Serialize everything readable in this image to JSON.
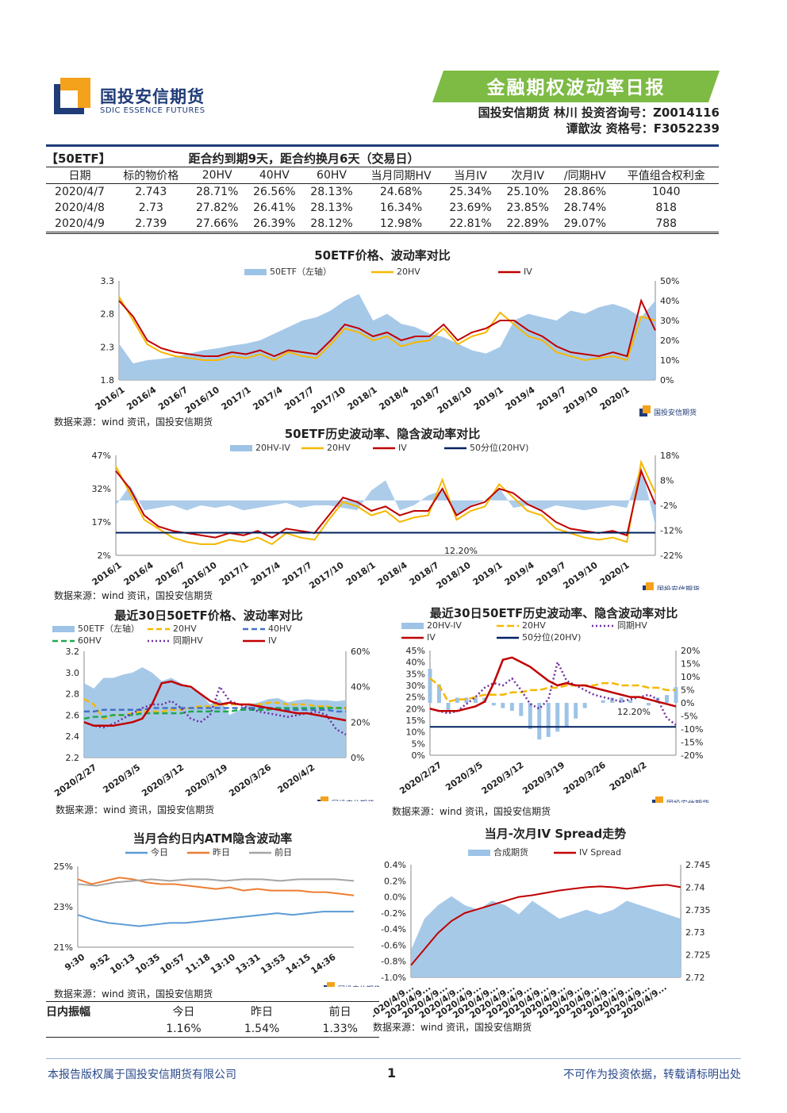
{
  "header": {
    "logo_text": "国投安信期货",
    "logo_sub": "SDIC ESSENCE FUTURES",
    "report_title": "金融期权波动率日报",
    "author_line1": "国投安信期货  林川  投资咨询号：Z0014116",
    "author_line2": "谭歆汝      资格号：F3052239",
    "colors": {
      "brand_blue": "#1f3b78",
      "brand_orange": "#f4a21b",
      "banner_green": "#7dbb44"
    }
  },
  "summary_table": {
    "tag": "【50ETF】",
    "note": "距合约到期9天，距合约换月6天（交易日）",
    "columns": [
      "日期",
      "标的物价格",
      "20HV",
      "40HV",
      "60HV",
      "当月同期HV",
      "当月IV",
      "次月IV",
      "/同期HV",
      "平值组合权利金"
    ],
    "rows": [
      [
        "2020/4/7",
        "2.743",
        "28.71%",
        "26.56%",
        "28.13%",
        "24.68%",
        "25.34%",
        "25.10%",
        "28.86%",
        "1040"
      ],
      [
        "2020/4/8",
        "2.73",
        "27.82%",
        "26.41%",
        "28.13%",
        "16.34%",
        "23.69%",
        "23.85%",
        "28.74%",
        "818"
      ],
      [
        "2020/4/9",
        "2.739",
        "27.66%",
        "26.39%",
        "28.12%",
        "12.98%",
        "22.81%",
        "22.89%",
        "29.07%",
        "788"
      ]
    ]
  },
  "source_note": "数据来源：wind 资讯，国投安信期货",
  "watermark": "国投安信期货",
  "chart_data": [
    {
      "id": "c1",
      "type": "area",
      "title": "50ETF价格、波动率对比",
      "legend": [
        "50ETF（左轴）",
        "20HV",
        "IV"
      ],
      "x_ticks": [
        "2016/1",
        "2016/4",
        "2016/7",
        "2016/10",
        "2017/1",
        "2017/4",
        "2017/7",
        "2017/10",
        "2018/1",
        "2018/4",
        "2018/7",
        "2018/10",
        "2019/1",
        "2019/4",
        "2019/7",
        "2019/10",
        "2020/1"
      ],
      "y_left_ticks": [
        "1.8",
        "2.3",
        "2.8",
        "3.3"
      ],
      "y_right_ticks": [
        "0%",
        "10%",
        "20%",
        "30%",
        "40%",
        "50%"
      ],
      "ylim_left": [
        1.8,
        3.3
      ],
      "ylim_right": [
        0,
        50
      ],
      "series": [
        {
          "name": "50ETF（左轴）",
          "axis": "left",
          "values": [
            2.35,
            2.05,
            2.1,
            2.12,
            2.15,
            2.2,
            2.25,
            2.28,
            2.32,
            2.35,
            2.4,
            2.5,
            2.6,
            2.7,
            2.75,
            2.85,
            3.0,
            3.1,
            2.7,
            2.8,
            2.65,
            2.6,
            2.5,
            2.45,
            2.35,
            2.25,
            2.2,
            2.3,
            2.7,
            2.8,
            2.75,
            2.7,
            2.85,
            2.8,
            2.9,
            2.95,
            2.88,
            2.75,
            3.0
          ]
        },
        {
          "name": "20HV",
          "axis": "right",
          "values": [
            42,
            30,
            18,
            14,
            12,
            11,
            10,
            10,
            12,
            11,
            13,
            10,
            14,
            12,
            11,
            18,
            26,
            24,
            20,
            22,
            17,
            19,
            20,
            26,
            18,
            22,
            24,
            34,
            28,
            22,
            20,
            14,
            12,
            10,
            11,
            12,
            10,
            32,
            30
          ]
        },
        {
          "name": "IV",
          "axis": "right",
          "values": [
            40,
            32,
            20,
            16,
            14,
            13,
            12,
            12,
            14,
            13,
            15,
            12,
            15,
            14,
            13,
            20,
            28,
            26,
            22,
            24,
            20,
            22,
            22,
            28,
            20,
            24,
            26,
            30,
            30,
            25,
            22,
            17,
            14,
            13,
            12,
            14,
            12,
            40,
            25
          ]
        }
      ],
      "colors": {
        "50ETF（左轴）": "#9dc3e6",
        "20HV": "#f5b800",
        "IV": "#c00000"
      }
    },
    {
      "id": "c2",
      "type": "line",
      "title": "50ETF历史波动率、隐含波动率对比",
      "legend": [
        "20HV-IV",
        "20HV",
        "IV",
        "50分位(20HV)"
      ],
      "x_ticks": [
        "2016/1",
        "2016/4",
        "2016/7",
        "2016/10",
        "2017/1",
        "2017/4",
        "2017/7",
        "2017/10",
        "2018/1",
        "2018/4",
        "2018/7",
        "2018/10",
        "2019/1",
        "2019/4",
        "2019/7",
        "2019/10",
        "2020/1"
      ],
      "y_left_ticks": [
        "2%",
        "17%",
        "32%",
        "47%"
      ],
      "y_right_ticks": [
        "-22%",
        "-12%",
        "-2%",
        "8%",
        "18%"
      ],
      "ylim_left": [
        2,
        47
      ],
      "ylim_right": [
        -22,
        18
      ],
      "annotation": "12.20%",
      "series": [
        {
          "name": "20HV-IV",
          "axis": "right",
          "values": [
            -2,
            6,
            -4,
            -3,
            -2,
            -4,
            -2,
            -3,
            -2,
            -4,
            -3,
            -2,
            -1,
            -3,
            -2,
            -2,
            -3,
            -4,
            4,
            8,
            -4,
            -2,
            2,
            4,
            -6,
            -2,
            0,
            5,
            -3,
            -2,
            -4,
            -2,
            -3,
            -4,
            -3,
            -2,
            -3,
            14,
            -10
          ]
        },
        {
          "name": "20HV",
          "axis": "left",
          "values": [
            42,
            30,
            18,
            14,
            10,
            8,
            7,
            7,
            9,
            8,
            10,
            7,
            12,
            10,
            9,
            18,
            26,
            24,
            20,
            22,
            17,
            19,
            20,
            36,
            18,
            22,
            24,
            34,
            28,
            22,
            20,
            14,
            12,
            10,
            9,
            10,
            8,
            44,
            30
          ]
        },
        {
          "name": "IV",
          "axis": "left",
          "values": [
            40,
            32,
            20,
            15,
            13,
            12,
            11,
            10,
            12,
            11,
            13,
            10,
            14,
            13,
            12,
            20,
            28,
            26,
            22,
            24,
            20,
            22,
            22,
            32,
            20,
            24,
            26,
            32,
            30,
            25,
            22,
            17,
            14,
            13,
            12,
            13,
            11,
            40,
            25
          ]
        },
        {
          "name": "50分位(20HV)",
          "axis": "left",
          "values": [
            12.2,
            12.2
          ]
        }
      ],
      "colors": {
        "20HV-IV": "#9dc3e6",
        "20HV": "#f5b800",
        "IV": "#c00000",
        "50分位(20HV)": "#002060"
      }
    },
    {
      "id": "c3",
      "type": "line",
      "title": "最近30日50ETF价格、波动率对比",
      "legend": [
        "50ETF（左轴）",
        "20HV",
        "40HV",
        "60HV",
        "同期HV",
        "IV"
      ],
      "x_ticks": [
        "2020/2/27",
        "2020/3/5",
        "2020/3/12",
        "2020/3/19",
        "2020/3/26",
        "2020/4/2"
      ],
      "y_left_ticks": [
        "2.2",
        "2.4",
        "2.6",
        "2.8",
        "3.0",
        "3.2"
      ],
      "y_right_ticks": [
        "0%",
        "20%",
        "40%",
        "60%"
      ],
      "ylim_left": [
        2.2,
        3.2
      ],
      "ylim_right": [
        0,
        60
      ],
      "series": [
        {
          "name": "50ETF（左轴）",
          "axis": "left",
          "values": [
            2.9,
            2.85,
            2.95,
            2.95,
            2.98,
            3.0,
            3.05,
            3.0,
            2.92,
            2.95,
            2.9,
            2.85,
            2.8,
            2.7,
            2.75,
            2.6,
            2.65,
            2.7,
            2.72,
            2.75,
            2.76,
            2.72,
            2.74,
            2.75,
            2.74,
            2.74,
            2.73,
            2.74
          ]
        },
        {
          "name": "20HV",
          "axis": "right",
          "values": [
            33,
            30,
            22,
            24,
            24,
            25,
            26,
            26,
            26,
            27,
            27,
            28,
            29,
            29,
            30,
            30,
            30,
            30,
            30,
            31,
            31,
            30,
            30,
            30,
            29,
            29,
            28,
            28
          ]
        },
        {
          "name": "40HV",
          "axis": "right",
          "values": [
            26,
            26,
            27,
            27,
            27,
            27,
            27,
            28,
            28,
            28,
            28,
            28,
            28,
            28,
            28,
            28,
            28,
            28,
            28,
            28,
            28,
            27,
            27,
            27,
            27,
            27,
            26,
            26
          ]
        },
        {
          "name": "60HV",
          "axis": "right",
          "values": [
            22,
            23,
            23,
            24,
            24,
            24,
            25,
            25,
            25,
            25,
            25,
            26,
            26,
            26,
            26,
            26,
            27,
            27,
            27,
            27,
            28,
            28,
            28,
            28,
            28,
            28,
            28,
            28
          ]
        },
        {
          "name": "同期HV",
          "axis": "right",
          "values": [
            20,
            18,
            17,
            19,
            22,
            25,
            28,
            30,
            30,
            32,
            28,
            22,
            20,
            24,
            40,
            32,
            30,
            28,
            26,
            25,
            24,
            23,
            24,
            25,
            26,
            24,
            16,
            13
          ]
        },
        {
          "name": "IV",
          "axis": "right",
          "values": [
            20,
            18,
            18,
            18,
            19,
            20,
            22,
            30,
            42,
            43,
            41,
            40,
            36,
            32,
            30,
            31,
            30,
            30,
            29,
            28,
            27,
            26,
            25,
            25,
            24,
            23,
            22,
            21
          ]
        }
      ],
      "colors": {
        "50ETF（左轴）": "#9dc3e6",
        "20HV": "#f5b800",
        "40HV": "#4472c4",
        "60HV": "#1fa84f",
        "同期HV": "#7030a0",
        "IV": "#c00000"
      }
    },
    {
      "id": "c4",
      "type": "bar",
      "title": "最近30日50ETF历史波动率、隐含波动率对比",
      "legend": [
        "20HV-IV",
        "20HV",
        "同期HV",
        "IV",
        "50分位(20HV)"
      ],
      "x_ticks": [
        "2020/2/27",
        "2020/3/5",
        "2020/3/12",
        "2020/3/19",
        "2020/3/26",
        "2020/4/2"
      ],
      "y_left_ticks": [
        "0%",
        "5%",
        "10%",
        "15%",
        "20%",
        "25%",
        "30%",
        "35%",
        "40%",
        "45%"
      ],
      "y_right_ticks": [
        "-20%",
        "-15%",
        "-10%",
        "-5%",
        "0%",
        "5%",
        "10%",
        "15%",
        "20%"
      ],
      "ylim_left": [
        0,
        45
      ],
      "ylim_right": [
        -20,
        20
      ],
      "annotation": "12.20%",
      "series": [
        {
          "name": "20HV-IV",
          "axis": "right",
          "values": [
            13,
            7,
            -3,
            2,
            2,
            2,
            2,
            -1,
            -2,
            -3,
            -5,
            -10,
            -14,
            -13,
            -11,
            -9,
            -6,
            -2,
            0,
            1,
            2,
            2,
            1,
            0,
            -1,
            2,
            3,
            6
          ]
        },
        {
          "name": "20HV",
          "axis": "left",
          "values": [
            33,
            30,
            23,
            24,
            24,
            25,
            26,
            26,
            26,
            27,
            27,
            28,
            28,
            29,
            29,
            30,
            30,
            30,
            30,
            31,
            31,
            30,
            30,
            30,
            29,
            29,
            28,
            28
          ]
        },
        {
          "name": "同期HV",
          "axis": "left",
          "values": [
            20,
            19,
            18,
            19,
            22,
            25,
            29,
            31,
            30,
            33,
            28,
            22,
            20,
            24,
            40,
            32,
            30,
            28,
            26,
            25,
            24,
            23,
            24,
            25,
            26,
            24,
            16,
            13
          ]
        },
        {
          "name": "IV",
          "axis": "left",
          "values": [
            20,
            19,
            19,
            19,
            20,
            21,
            23,
            31,
            41,
            42,
            40,
            38,
            35,
            32,
            30,
            31,
            30,
            30,
            29,
            28,
            27,
            26,
            25,
            25,
            24,
            23,
            22,
            21
          ]
        },
        {
          "name": "50分位(20HV)",
          "axis": "left",
          "values": [
            12.2,
            12.2
          ]
        }
      ],
      "colors": {
        "20HV-IV": "#9dc3e6",
        "20HV": "#f5b800",
        "同期HV": "#7030a0",
        "IV": "#c00000",
        "50分位(20HV)": "#002060"
      }
    },
    {
      "id": "c5",
      "type": "line",
      "title": "当月合约日内ATM隐含波动率",
      "legend": [
        "今日",
        "昨日",
        "前日"
      ],
      "x_ticks": [
        "9:30",
        "9:52",
        "10:13",
        "10:35",
        "10:57",
        "11:18",
        "13:10",
        "13:31",
        "13:53",
        "14:15",
        "14:36"
      ],
      "y_ticks": [
        "21%",
        "23%",
        "25%"
      ],
      "ylim": [
        21,
        26
      ],
      "series": [
        {
          "name": "今日",
          "values": [
            23.0,
            22.7,
            22.5,
            22.4,
            22.3,
            22.4,
            22.5,
            22.5,
            22.6,
            22.7,
            22.8,
            22.9,
            23.0,
            23.1,
            23.0,
            23.1,
            23.2,
            23.2,
            23.2
          ]
        },
        {
          "name": "昨日",
          "values": [
            25.2,
            24.9,
            25.1,
            25.3,
            25.2,
            25.0,
            24.9,
            24.9,
            24.8,
            24.7,
            24.6,
            24.7,
            24.5,
            24.6,
            24.5,
            24.5,
            24.5,
            24.4,
            24.4,
            24.3,
            24.2
          ]
        },
        {
          "name": "前日",
          "values": [
            24.9,
            24.8,
            25.0,
            25.1,
            25.2,
            25.1,
            25.2,
            25.2,
            25.1,
            25.2,
            25.2,
            25.1,
            25.2,
            25.2,
            25.2,
            25.1
          ]
        }
      ],
      "colors": {
        "今日": "#5b9bd5",
        "昨日": "#ed7d31",
        "前日": "#a5a5a5"
      }
    },
    {
      "id": "c6",
      "type": "area",
      "title": "当月-次月IV Spread走势",
      "legend": [
        "合成期货",
        "IV Spread"
      ],
      "x_ticks": [
        "2020/4/9...",
        "2020/4/9...",
        "2020/4/9...",
        "2020/4/9...",
        "2020/4/9...",
        "2020/4/9...",
        "2020/4/9...",
        "2020/4/9...",
        "2020/4/9...",
        "2020/4/9...",
        "2020/4/9...",
        "2020/4/9...",
        "2020/4/9...",
        "2020/4/9...",
        "2020/4/9...",
        "2020/4/9..."
      ],
      "y_left_ticks": [
        "-1.0%",
        "-0.8%",
        "-0.6%",
        "-0.4%",
        "-0.2%",
        "0.0%",
        "0.2%",
        "0.4%"
      ],
      "y_right_ticks": [
        "2.72",
        "2.725",
        "2.73",
        "2.735",
        "2.74",
        "2.745"
      ],
      "ylim_left": [
        -1.0,
        0.4
      ],
      "ylim_right": [
        2.72,
        2.745
      ],
      "series": [
        {
          "name": "合成期货",
          "axis": "right",
          "values": [
            2.726,
            2.733,
            2.736,
            2.738,
            2.736,
            2.735,
            2.737,
            2.736,
            2.734,
            2.737,
            2.735,
            2.733,
            2.734,
            2.735,
            2.734,
            2.735,
            2.737,
            2.736,
            2.735,
            2.734,
            2.733
          ]
        },
        {
          "name": "IV Spread",
          "axis": "left",
          "values": [
            -0.85,
            -0.65,
            -0.45,
            -0.3,
            -0.2,
            -0.15,
            -0.1,
            -0.05,
            0.0,
            0.02,
            0.05,
            0.08,
            0.1,
            0.12,
            0.13,
            0.12,
            0.1,
            0.12,
            0.14,
            0.15,
            0.12
          ]
        }
      ],
      "colors": {
        "合成期货": "#9dc3e6",
        "IV Spread": "#c00000"
      }
    }
  ],
  "amplitude": {
    "label": "日内振幅",
    "headers": [
      "今日",
      "昨日",
      "前日"
    ],
    "values": [
      "1.16%",
      "1.54%",
      "1.33%"
    ]
  },
  "footer": {
    "left": "本报告版权属于国投安信期货有限公司",
    "page": "1",
    "right": "不可作为投资依据，转载请标明出处"
  }
}
